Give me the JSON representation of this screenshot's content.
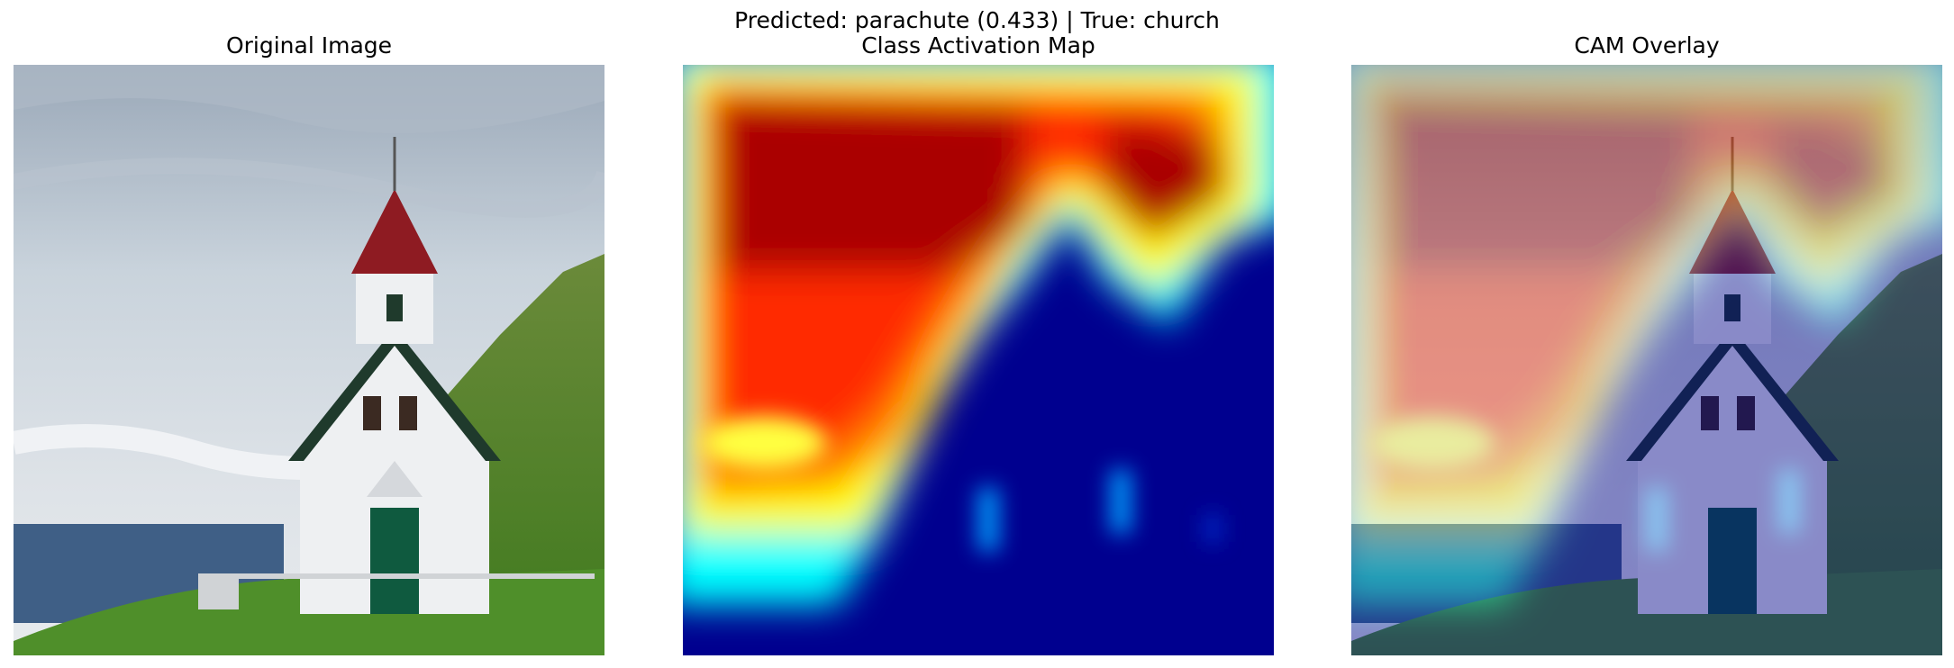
{
  "figure": {
    "suptitle": "Predicted: parachute (0.433) | True: church",
    "panels": [
      {
        "title": "Original Image",
        "content": "church photograph"
      },
      {
        "title": "Class Activation Map",
        "colormap": "jet"
      },
      {
        "title": "CAM Overlay",
        "overlay_alpha": 0.4
      }
    ]
  },
  "colors": {
    "jet_low": "#00008f",
    "jet_high": "#8b0000",
    "sky": "#c9d3dc",
    "grass": "#4f8f2a",
    "sea": "#3f5f86",
    "roof": "#8e1b22",
    "wall": "#eef0f2",
    "door": "#0f5a3f"
  }
}
